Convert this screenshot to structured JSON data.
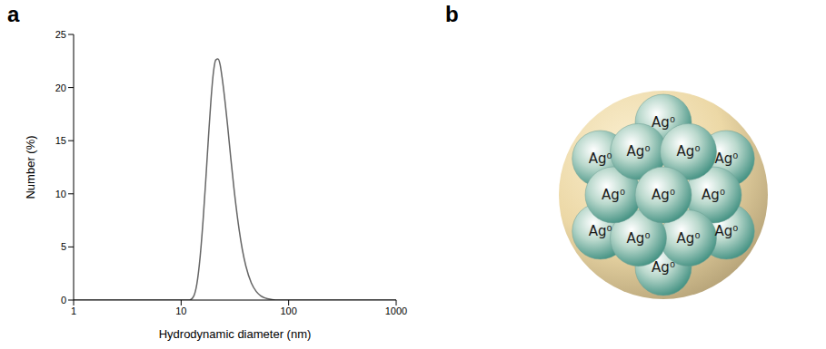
{
  "panel_labels": [
    "a",
    "b"
  ],
  "chart_data": {
    "type": "line",
    "x_label": "Hydrodynamic diameter (nm)",
    "y_label": "Number (%)",
    "log": "x",
    "grid": false,
    "color": "#666666",
    "x": [
      1,
      10,
      12,
      13,
      14,
      15,
      16,
      17,
      18,
      19,
      20,
      21,
      22,
      23,
      24,
      25,
      27,
      29,
      31,
      34,
      37,
      40,
      45,
      50,
      55,
      60,
      70,
      80,
      100,
      1000
    ],
    "values": [
      0,
      0,
      0,
      0.3,
      1.5,
      4,
      7.5,
      11.5,
      15.5,
      19,
      21.5,
      22.6,
      22.7,
      22.2,
      21,
      19.6,
      16.5,
      13.3,
      10.5,
      7.2,
      4.8,
      3.2,
      1.6,
      0.8,
      0.4,
      0.2,
      0.05,
      0,
      0,
      0
    ],
    "xlim": [
      1,
      1000
    ],
    "xticks": [
      1,
      10,
      100,
      1000
    ],
    "ylim": [
      0,
      25
    ],
    "yticks": [
      0,
      5,
      10,
      15,
      20,
      25
    ]
  },
  "diagram": {
    "spheres": [
      "Ag⁰",
      "Ag⁰",
      "Ag⁰",
      "Ag⁰",
      "Ag⁰",
      "Ag⁰",
      "Ag⁰",
      "Ag⁰",
      "Ag⁰",
      "Ag⁰",
      "Ag⁰",
      "Ag⁰",
      "Ag⁰"
    ]
  }
}
